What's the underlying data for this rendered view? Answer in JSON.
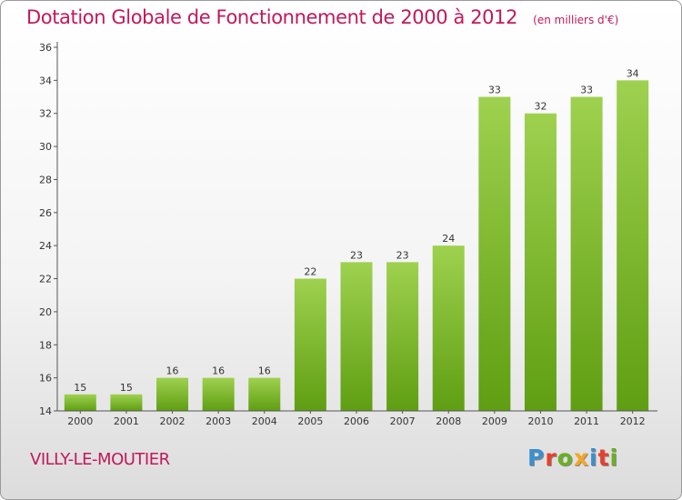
{
  "title": "Dotation Globale de Fonctionnement de 2000 à 2012",
  "subtitle": "(en milliers d'€)",
  "commune": "VILLY-LE-MOUTIER",
  "logo": {
    "text": "Proxiti",
    "letter_colors": [
      "#3a8fd0",
      "#e8402a",
      "#6ab023",
      "#f5a623",
      "#3a8fd0",
      "#e8402a",
      "#6ab023"
    ]
  },
  "colors": {
    "title": "#c2185b",
    "bar_light": "#9ed14f",
    "bar_dark": "#5f9e12",
    "axis": "#555555"
  },
  "chart_data": {
    "type": "bar",
    "title": "Dotation Globale de Fonctionnement de 2000 à 2012",
    "subtitle": "(en milliers d'€)",
    "categories": [
      "2000",
      "2001",
      "2002",
      "2003",
      "2004",
      "2005",
      "2006",
      "2007",
      "2008",
      "2009",
      "2010",
      "2011",
      "2012"
    ],
    "values": [
      15,
      15,
      16,
      16,
      16,
      22,
      23,
      23,
      24,
      33,
      32,
      33,
      34
    ],
    "ylim": [
      14,
      36
    ],
    "yticks": [
      14,
      16,
      18,
      20,
      22,
      24,
      26,
      28,
      30,
      32,
      34,
      36
    ],
    "grid": false,
    "data_labels": true
  }
}
